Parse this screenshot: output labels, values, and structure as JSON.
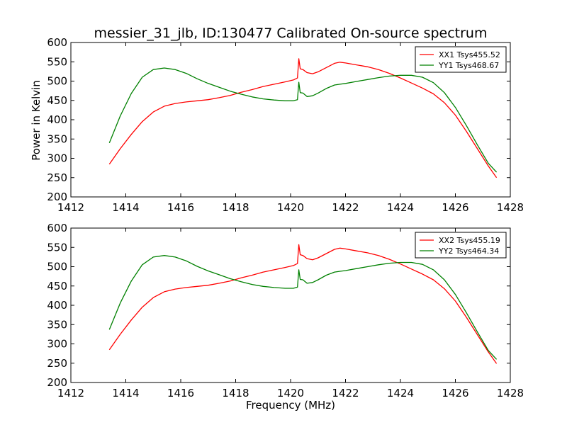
{
  "figure": {
    "title": "messier_31_jlb, ID:130477 Calibrated On-source spectrum",
    "xlabel": "Frequency (MHz)",
    "ylabel": "Power in Kelvin"
  },
  "colors": {
    "xx": "#ff0000",
    "yy": "#008000"
  },
  "chart_data": [
    {
      "type": "line",
      "xlim": [
        1412,
        1428
      ],
      "ylim": [
        200,
        600
      ],
      "xticks": [
        1412,
        1414,
        1416,
        1418,
        1420,
        1422,
        1424,
        1426,
        1428
      ],
      "yticks": [
        200,
        250,
        300,
        350,
        400,
        450,
        500,
        550,
        600
      ],
      "ylabel": "Power in Kelvin",
      "xlabel": "",
      "legend_position": "top-right",
      "grid": false,
      "series": [
        {
          "name": "XX1 Tsys455.52",
          "color": "#ff0000",
          "x": [
            1413.4,
            1413.8,
            1414.2,
            1414.6,
            1415.0,
            1415.4,
            1415.8,
            1416.2,
            1416.6,
            1417.0,
            1417.4,
            1417.8,
            1418.2,
            1418.6,
            1419.0,
            1419.4,
            1419.8,
            1420.1,
            1420.25,
            1420.3,
            1420.35,
            1420.45,
            1420.6,
            1420.8,
            1421.0,
            1421.3,
            1421.6,
            1421.8,
            1422.0,
            1422.4,
            1422.8,
            1423.2,
            1423.6,
            1424.0,
            1424.4,
            1424.8,
            1425.2,
            1425.6,
            1426.0,
            1426.4,
            1426.8,
            1427.2,
            1427.5
          ],
          "y": [
            285,
            325,
            362,
            395,
            420,
            435,
            442,
            446,
            449,
            452,
            457,
            463,
            471,
            478,
            486,
            492,
            498,
            503,
            508,
            558,
            532,
            530,
            522,
            519,
            524,
            535,
            546,
            549,
            547,
            542,
            537,
            530,
            520,
            508,
            495,
            482,
            467,
            444,
            412,
            370,
            325,
            280,
            250
          ]
        },
        {
          "name": "YY1 Tsys468.67",
          "color": "#008000",
          "x": [
            1413.4,
            1413.8,
            1414.2,
            1414.6,
            1415.0,
            1415.4,
            1415.8,
            1416.2,
            1416.6,
            1417.0,
            1417.4,
            1417.8,
            1418.2,
            1418.6,
            1419.0,
            1419.4,
            1419.8,
            1420.1,
            1420.25,
            1420.3,
            1420.35,
            1420.45,
            1420.6,
            1420.8,
            1421.0,
            1421.3,
            1421.6,
            1421.8,
            1422.0,
            1422.4,
            1422.8,
            1423.2,
            1423.6,
            1424.0,
            1424.4,
            1424.8,
            1425.2,
            1425.6,
            1426.0,
            1426.4,
            1426.8,
            1427.2,
            1427.5
          ],
          "y": [
            340,
            410,
            468,
            510,
            530,
            534,
            530,
            520,
            506,
            494,
            484,
            474,
            466,
            459,
            454,
            451,
            449,
            449,
            452,
            497,
            470,
            469,
            460,
            462,
            469,
            481,
            490,
            492,
            494,
            499,
            504,
            509,
            513,
            515,
            515,
            510,
            496,
            470,
            432,
            385,
            335,
            287,
            264
          ]
        }
      ]
    },
    {
      "type": "line",
      "xlim": [
        1412,
        1428
      ],
      "ylim": [
        200,
        600
      ],
      "xticks": [
        1412,
        1414,
        1416,
        1418,
        1420,
        1422,
        1424,
        1426,
        1428
      ],
      "yticks": [
        200,
        250,
        300,
        350,
        400,
        450,
        500,
        550,
        600
      ],
      "ylabel": "",
      "xlabel": "Frequency (MHz)",
      "legend_position": "top-right",
      "grid": false,
      "series": [
        {
          "name": "XX2 Tsys455.19",
          "color": "#ff0000",
          "x": [
            1413.4,
            1413.8,
            1414.2,
            1414.6,
            1415.0,
            1415.4,
            1415.8,
            1416.2,
            1416.6,
            1417.0,
            1417.4,
            1417.8,
            1418.2,
            1418.6,
            1419.0,
            1419.4,
            1419.8,
            1420.1,
            1420.25,
            1420.3,
            1420.35,
            1420.45,
            1420.6,
            1420.8,
            1421.0,
            1421.3,
            1421.6,
            1421.8,
            1422.0,
            1422.4,
            1422.8,
            1423.2,
            1423.6,
            1424.0,
            1424.4,
            1424.8,
            1425.2,
            1425.6,
            1426.0,
            1426.4,
            1426.8,
            1427.2,
            1427.5
          ],
          "y": [
            285,
            325,
            362,
            395,
            420,
            435,
            442,
            446,
            449,
            452,
            457,
            463,
            471,
            478,
            486,
            492,
            498,
            503,
            508,
            557,
            531,
            529,
            521,
            518,
            523,
            534,
            545,
            548,
            546,
            541,
            536,
            529,
            519,
            507,
            494,
            481,
            466,
            443,
            411,
            369,
            324,
            279,
            249
          ]
        },
        {
          "name": "YY2 Tsys464.34",
          "color": "#008000",
          "x": [
            1413.4,
            1413.8,
            1414.2,
            1414.6,
            1415.0,
            1415.4,
            1415.8,
            1416.2,
            1416.6,
            1417.0,
            1417.4,
            1417.8,
            1418.2,
            1418.6,
            1419.0,
            1419.4,
            1419.8,
            1420.1,
            1420.25,
            1420.3,
            1420.35,
            1420.45,
            1420.6,
            1420.8,
            1421.0,
            1421.3,
            1421.6,
            1421.8,
            1422.0,
            1422.4,
            1422.8,
            1423.2,
            1423.6,
            1424.0,
            1424.4,
            1424.8,
            1425.2,
            1425.6,
            1426.0,
            1426.4,
            1426.8,
            1427.2,
            1427.5
          ],
          "y": [
            337,
            406,
            463,
            505,
            525,
            529,
            525,
            515,
            501,
            489,
            479,
            469,
            461,
            454,
            449,
            446,
            444,
            444,
            447,
            492,
            467,
            466,
            457,
            459,
            466,
            478,
            486,
            488,
            490,
            495,
            500,
            505,
            509,
            511,
            511,
            506,
            492,
            466,
            428,
            381,
            331,
            283,
            260
          ]
        }
      ]
    }
  ]
}
